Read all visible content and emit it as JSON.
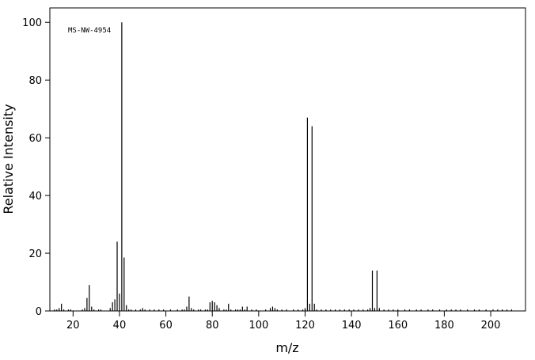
{
  "chart_data": {
    "type": "stem",
    "annotation": "MS-NW-4954",
    "x_label": "m/z",
    "y_label": "Relative Intensity",
    "color": "#000000",
    "x": [
      12,
      13,
      14,
      15,
      16,
      18,
      19,
      24,
      25,
      26,
      27,
      28,
      29,
      31,
      32,
      36,
      37,
      38,
      39,
      40,
      41,
      42,
      43,
      44,
      45,
      47,
      49,
      50,
      51,
      53,
      55,
      57,
      59,
      62,
      65,
      67,
      68,
      69,
      70,
      71,
      72,
      74,
      75,
      77,
      78,
      79,
      80,
      81,
      82,
      83,
      85,
      86,
      87,
      88,
      90,
      91,
      92,
      93,
      94,
      95,
      97,
      99,
      103,
      105,
      106,
      107,
      108,
      110,
      112,
      115,
      117,
      119,
      120,
      121,
      122,
      123,
      124,
      125,
      127,
      129,
      131,
      133,
      135,
      137,
      139,
      141,
      143,
      145,
      147,
      148,
      149,
      150,
      151,
      152,
      154,
      156,
      158,
      160,
      163,
      165,
      168,
      170,
      173,
      175,
      178,
      181,
      183,
      185,
      187,
      190,
      193,
      195,
      198,
      201,
      203,
      205,
      207,
      209
    ],
    "values": [
      0.5,
      0.5,
      1,
      2.5,
      0.5,
      0.5,
      0.5,
      0.5,
      1,
      4.5,
      9,
      1.5,
      0.5,
      0.5,
      0.5,
      1,
      3,
      4,
      24,
      6,
      100,
      18.5,
      2,
      0.5,
      0.5,
      0.5,
      0.5,
      1,
      0.5,
      0.5,
      0.5,
      0.5,
      0.5,
      0.5,
      0.5,
      0.5,
      0.5,
      1.5,
      5,
      1,
      0.5,
      0.5,
      0.5,
      0.5,
      0.5,
      3,
      3.5,
      3,
      2,
      1,
      0.5,
      0.5,
      2.5,
      0.5,
      0.5,
      0.5,
      0.5,
      1.5,
      0.5,
      1.5,
      0.5,
      0.5,
      0.5,
      1,
      1.5,
      1,
      0.5,
      0.5,
      0.5,
      0.5,
      0.5,
      0.5,
      1,
      67,
      2.5,
      64,
      2.5,
      0.5,
      0.5,
      0.5,
      0.5,
      0.5,
      0.5,
      0.5,
      0.5,
      0.5,
      0.5,
      0.5,
      0.5,
      1,
      14,
      1,
      14,
      1,
      0.5,
      0.5,
      0.5,
      0.5,
      0.5,
      0.5,
      0.5,
      0.5,
      0.5,
      0.5,
      0.5,
      0.5,
      0.5,
      0.5,
      0.5,
      0.5,
      0.5,
      0.5,
      0.5,
      0.5,
      0.5,
      0.5,
      0.5,
      0.5
    ],
    "xlim": [
      10,
      215
    ],
    "xticks": [
      20,
      40,
      60,
      80,
      100,
      120,
      140,
      160,
      180,
      200
    ],
    "ylim": [
      0,
      105
    ],
    "yticks": [
      0,
      20,
      40,
      60,
      80,
      100
    ]
  }
}
